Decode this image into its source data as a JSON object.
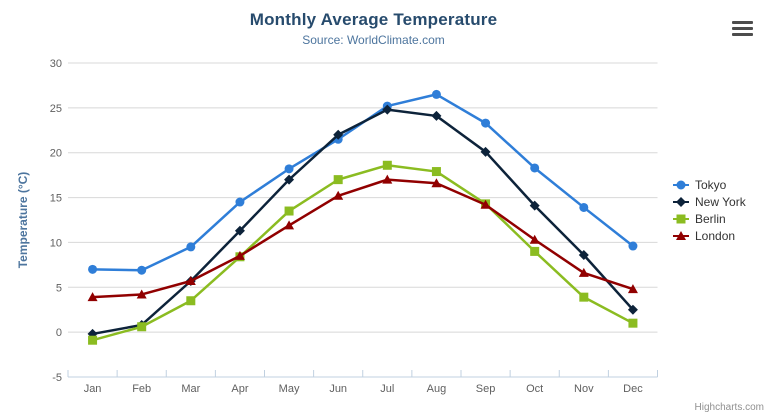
{
  "chart_data": {
    "type": "line",
    "title": "Monthly Average Temperature",
    "subtitle": "Source: WorldClimate.com",
    "categories": [
      "Jan",
      "Feb",
      "Mar",
      "Apr",
      "May",
      "Jun",
      "Jul",
      "Aug",
      "Sep",
      "Oct",
      "Nov",
      "Dec"
    ],
    "xlabel": "",
    "ylabel": "Temperature (°C)",
    "ylim": [
      -5,
      30
    ],
    "ytick_step": 5,
    "ytick_labels": [
      "-5",
      "0",
      "5",
      "10",
      "15",
      "20",
      "25",
      "30"
    ],
    "grid": "horizontal-only",
    "legend_position": "right",
    "series": [
      {
        "name": "Tokyo",
        "color": "#2f7ed8",
        "marker": "circle",
        "values": [
          7.0,
          6.9,
          9.5,
          14.5,
          18.2,
          21.5,
          25.2,
          26.5,
          23.3,
          18.3,
          13.9,
          9.6
        ]
      },
      {
        "name": "New York",
        "color": "#0d233a",
        "marker": "diamond",
        "values": [
          -0.2,
          0.8,
          5.7,
          11.3,
          17.0,
          22.0,
          24.8,
          24.1,
          20.1,
          14.1,
          8.6,
          2.5
        ]
      },
      {
        "name": "Berlin",
        "color": "#8bbc21",
        "marker": "square",
        "values": [
          -0.9,
          0.6,
          3.5,
          8.4,
          13.5,
          17.0,
          18.6,
          17.9,
          14.3,
          9.0,
          3.9,
          1.0
        ]
      },
      {
        "name": "London",
        "color": "#910000",
        "marker": "triangle",
        "values": [
          3.9,
          4.2,
          5.7,
          8.5,
          11.9,
          15.2,
          17.0,
          16.6,
          14.2,
          10.3,
          6.6,
          4.8
        ]
      }
    ]
  },
  "credits": "Highcharts.com",
  "icons": {
    "context_menu": "hamburger-icon"
  },
  "colors": {
    "background": "#ffffff",
    "title": "#274b6d",
    "subtitle": "#4d759e",
    "axis_title": "#4d759e",
    "tick_label": "#606060",
    "gridline": "#d8d8d8",
    "axis_line": "#c0d0e0",
    "legend_text": "#333333",
    "credits_text": "#909090",
    "menu_icon": "#4d4d4d"
  }
}
